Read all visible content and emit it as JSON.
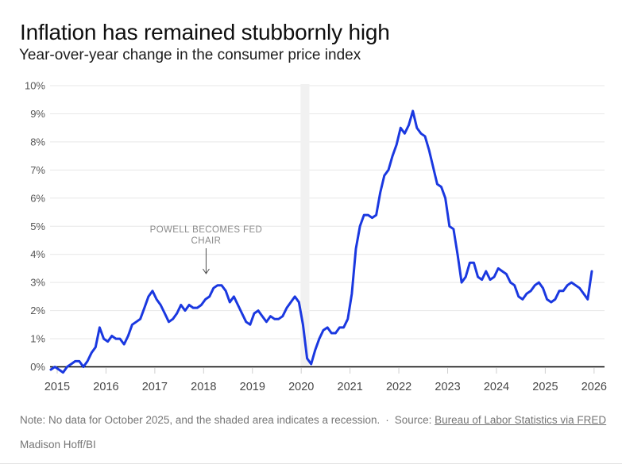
{
  "header": {
    "title": "Inflation has remained stubbornly high",
    "subtitle": "Year-over-year change in the consumer price index"
  },
  "chart_data": {
    "type": "line",
    "title": "Year-over-year change in the consumer price index",
    "unit": "percent",
    "ylim": [
      0,
      10
    ],
    "grid": "horizontal",
    "y_tick_labels": [
      "0%",
      "1%",
      "2%",
      "3%",
      "4%",
      "5%",
      "6%",
      "7%",
      "8%",
      "9%",
      "10%"
    ],
    "x_tick_labels": [
      "2015",
      "2016",
      "2017",
      "2018",
      "2019",
      "2020",
      "2021",
      "2022",
      "2023",
      "2024",
      "2025",
      "2026"
    ],
    "line_color": "#1a38e0",
    "series": [
      {
        "name": "CPI year-over-year change",
        "start_month": "2015-01",
        "values": [
          -0.1,
          0.0,
          -0.1,
          -0.2,
          0.0,
          0.1,
          0.2,
          0.2,
          0.0,
          0.2,
          0.5,
          0.7,
          1.4,
          1.0,
          0.9,
          1.1,
          1.0,
          1.0,
          0.8,
          1.1,
          1.5,
          1.6,
          1.7,
          2.1,
          2.5,
          2.7,
          2.4,
          2.2,
          1.9,
          1.6,
          1.7,
          1.9,
          2.2,
          2.0,
          2.2,
          2.1,
          2.1,
          2.2,
          2.4,
          2.5,
          2.8,
          2.9,
          2.9,
          2.7,
          2.3,
          2.5,
          2.2,
          1.9,
          1.6,
          1.5,
          1.9,
          2.0,
          1.8,
          1.6,
          1.8,
          1.7,
          1.7,
          1.8,
          2.1,
          2.3,
          2.5,
          2.3,
          1.5,
          0.3,
          0.1,
          0.6,
          1.0,
          1.3,
          1.4,
          1.2,
          1.2,
          1.4,
          1.4,
          1.7,
          2.6,
          4.2,
          5.0,
          5.4,
          5.4,
          5.3,
          5.4,
          6.2,
          6.8,
          7.0,
          7.5,
          7.9,
          8.5,
          8.3,
          8.6,
          9.1,
          8.5,
          8.3,
          8.2,
          7.7,
          7.1,
          6.5,
          6.4,
          6.0,
          5.0,
          4.9,
          4.0,
          3.0,
          3.2,
          3.7,
          3.7,
          3.2,
          3.1,
          3.4,
          3.1,
          3.2,
          3.5,
          3.4,
          3.3,
          3.0,
          2.9,
          2.5,
          2.4,
          2.6,
          2.7,
          2.9,
          3.0,
          2.8,
          2.4,
          2.3,
          2.4,
          2.7,
          2.7,
          2.9,
          3.0,
          null,
          2.8,
          2.6,
          2.4,
          3.4
        ]
      }
    ],
    "annotation": {
      "text_lines": [
        "POWELL BECOMES FED",
        "CHAIR"
      ],
      "target_month": "2018-02",
      "arrow": "down"
    },
    "recession_band": {
      "start_month": "2020-02",
      "end_month": "2020-04",
      "color": "#f1f1f1"
    }
  },
  "footer": {
    "note": "Note: No data for October 2025, and the shaded area indicates a recession.",
    "separator": "·",
    "source_label": "Source:",
    "source_link_text": "Bureau of Labor Statistics via FRED",
    "byline": "Madison Hoff/BI"
  }
}
